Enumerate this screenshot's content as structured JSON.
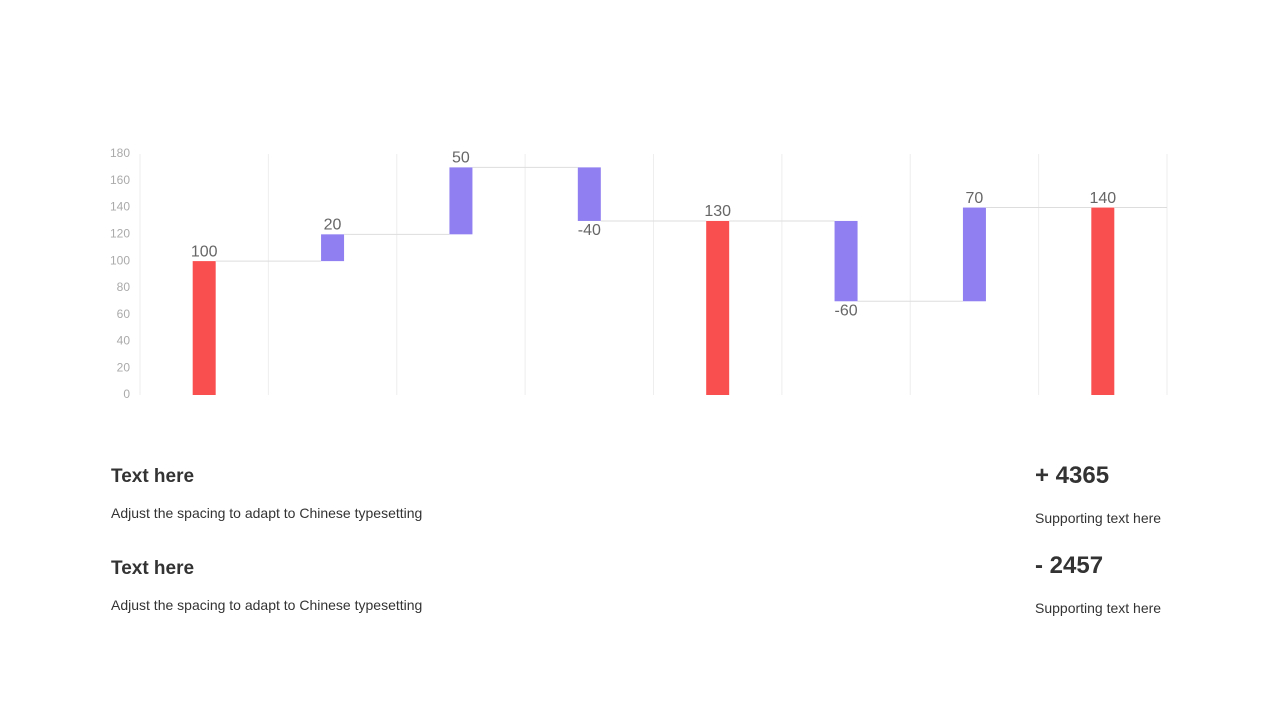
{
  "chart_data": {
    "type": "waterfall",
    "categories": [
      null,
      null,
      null,
      null,
      null,
      null,
      null,
      null
    ],
    "values": [
      100,
      20,
      50,
      -40,
      130,
      -60,
      70,
      140
    ],
    "is_total": [
      true,
      false,
      false,
      false,
      true,
      false,
      false,
      true
    ],
    "total_color": "#f94f4f",
    "delta_color": "#8f7ff0",
    "ylim": [
      0,
      180
    ],
    "yticks": [
      0,
      20,
      40,
      60,
      80,
      100,
      120,
      140,
      160,
      180
    ],
    "grid": true
  },
  "items": [
    {
      "title": "Text here",
      "description": "Adjust the spacing to adapt to Chinese typesetting",
      "figure": "+ 4365",
      "note": "Supporting text here"
    },
    {
      "title": "Text here",
      "description": "Adjust the spacing to adapt to Chinese typesetting",
      "figure": "- 2457",
      "note": "Supporting text here"
    }
  ]
}
